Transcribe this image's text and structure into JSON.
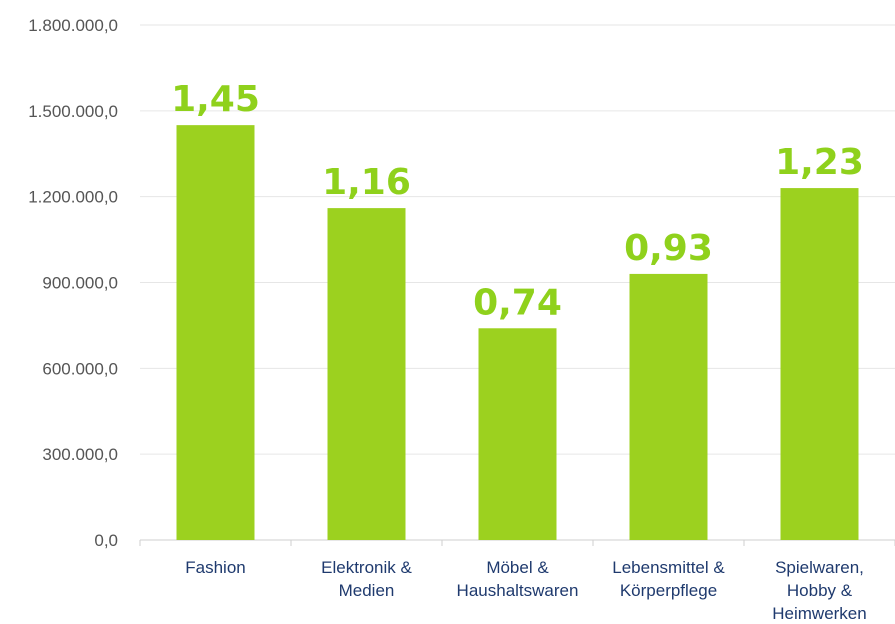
{
  "chart_data": {
    "type": "bar",
    "categories": [
      [
        "Fashion"
      ],
      [
        "Elektronik &",
        "Medien"
      ],
      [
        "Möbel &",
        "Haushaltswaren"
      ],
      [
        "Lebensmittel &",
        "Körperpflege"
      ],
      [
        "Spielwaren,",
        "Hobby &",
        "Heimwerken"
      ]
    ],
    "values": [
      1450000,
      1160000,
      740000,
      930000,
      1230000
    ],
    "data_labels": [
      "1,45",
      "1,16",
      "0,74",
      "0,93",
      "1,23"
    ],
    "ylim": [
      0,
      1800000
    ],
    "yticks": [
      0,
      300000,
      600000,
      900000,
      1200000,
      1500000,
      1800000
    ],
    "ytick_labels": [
      "0,0",
      "300.000,0",
      "600.000,0",
      "900.000,0",
      "1.200.000,0",
      "1.500.000,0",
      "1.800.000,0"
    ],
    "grid": true,
    "bar_color": "#9cd11f",
    "label_color": "#8fd11c",
    "xtick_color": "#1f3a6e"
  }
}
